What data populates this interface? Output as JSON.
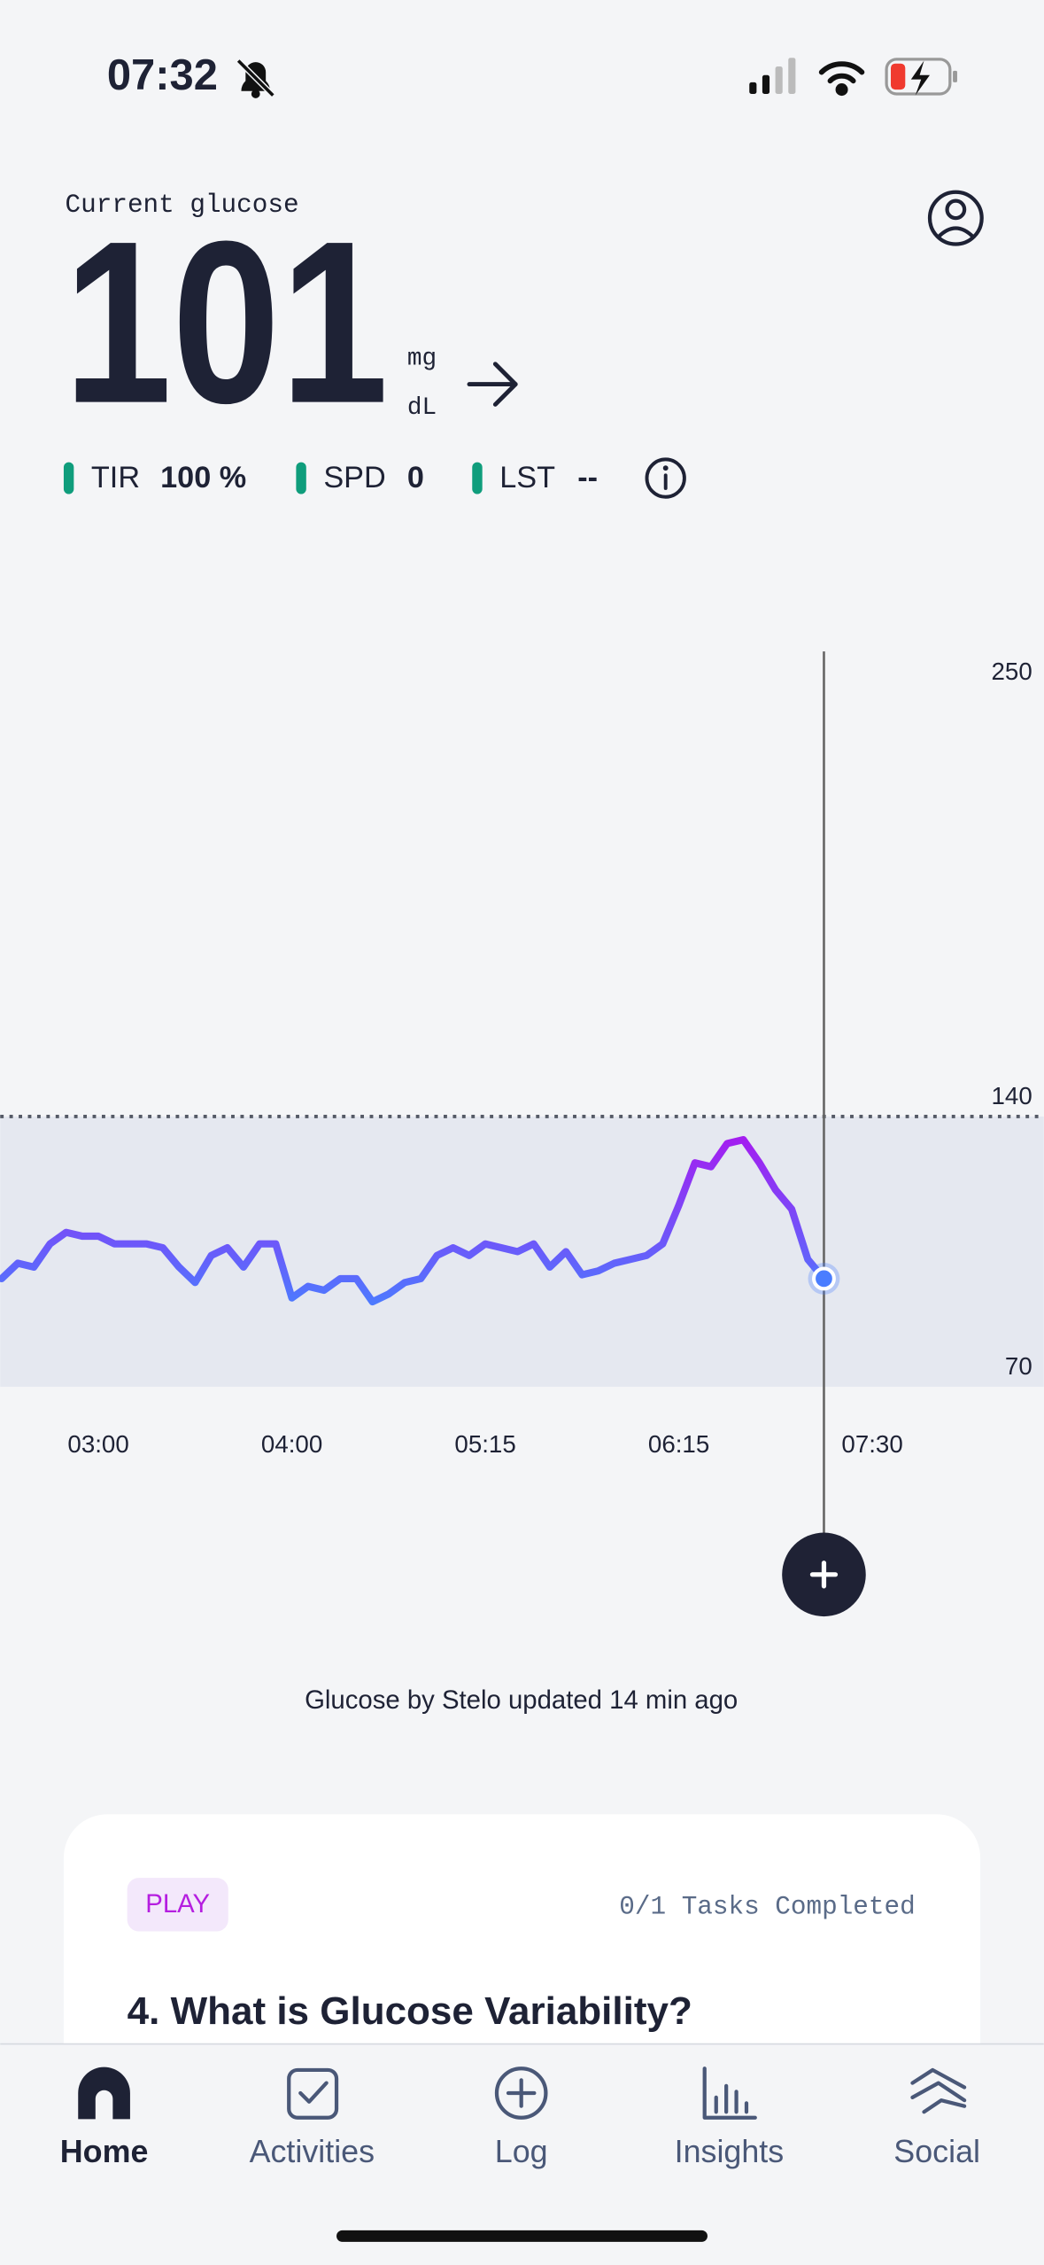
{
  "status_bar": {
    "time": "07:32"
  },
  "header": {
    "label": "Current glucose",
    "value": "101",
    "unit_top": "mg",
    "unit_bottom": "dL"
  },
  "metrics": [
    {
      "name": "TIR",
      "value": "100 %"
    },
    {
      "name": "SPD",
      "value": "0"
    },
    {
      "name": "LST",
      "value": "--"
    }
  ],
  "chart_data": {
    "type": "line",
    "categories": [
      null,
      null,
      null,
      null,
      null,
      null,
      "03:00",
      null,
      null,
      null,
      null,
      null,
      null,
      null,
      null,
      null,
      null,
      null,
      "04:00",
      null,
      null,
      null,
      null,
      null,
      null,
      null,
      null,
      null,
      null,
      null,
      "05:15",
      null,
      null,
      null,
      null,
      null,
      null,
      null,
      null,
      null,
      null,
      null,
      "06:15",
      null,
      null,
      null,
      null,
      null,
      null,
      null,
      null,
      null,
      null,
      null,
      "07:30"
    ],
    "values": [
      98,
      102,
      101,
      107,
      110,
      109,
      109,
      107,
      107,
      107,
      106,
      101,
      97,
      104,
      106,
      101,
      107,
      107,
      93,
      96,
      95,
      98,
      98,
      92,
      94,
      97,
      98,
      104,
      106,
      104,
      107,
      106,
      105,
      107,
      101,
      105,
      99,
      100,
      102,
      103,
      104,
      107,
      117,
      128,
      127,
      133,
      134,
      128,
      121,
      116,
      103,
      98,
      null,
      null,
      null
    ],
    "gradient": [
      "#4a7dff",
      "#a51cf0"
    ],
    "target_range": [
      70,
      140
    ],
    "ylim": [
      70,
      250
    ],
    "yticks": [
      70,
      140,
      250
    ]
  },
  "footer_note": "Glucose by Stelo updated 14 min ago",
  "card": {
    "tag": "PLAY",
    "progress": "0/1 Tasks Completed",
    "title": "4. What is Glucose Variability?"
  },
  "nav": {
    "items": [
      "Home",
      "Activities",
      "Log",
      "Insights",
      "Social"
    ]
  }
}
